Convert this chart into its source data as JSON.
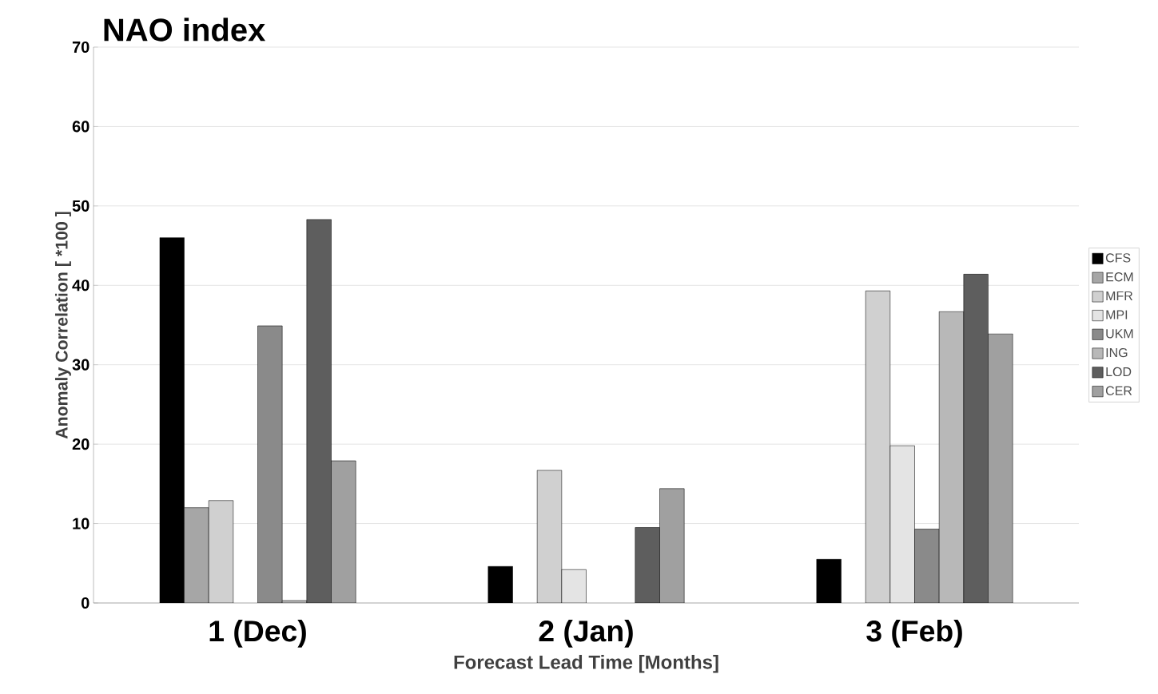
{
  "chart_data": {
    "type": "bar",
    "title": "NAO index",
    "xlabel": "Forecast Lead Time  [Months]",
    "ylabel": "Anomaly Correlation [ *100 ]",
    "categories": [
      "1 (Dec)",
      "2 (Jan)",
      "3 (Feb)"
    ],
    "series": [
      {
        "name": "CFS",
        "color": "#000000",
        "values": [
          46,
          4.6,
          5.5
        ]
      },
      {
        "name": "ECM",
        "color": "#a6a6a6",
        "values": [
          12,
          null,
          null
        ]
      },
      {
        "name": "MFR",
        "color": "#d0d0d0",
        "values": [
          12.9,
          16.7,
          39.3
        ]
      },
      {
        "name": "MPI",
        "color": "#e4e4e4",
        "values": [
          null,
          4.2,
          19.8
        ]
      },
      {
        "name": "UKM",
        "color": "#8a8a8a",
        "values": [
          34.9,
          null,
          9.3
        ]
      },
      {
        "name": "ING",
        "color": "#b8b8b8",
        "values": [
          0.3,
          null,
          36.7
        ]
      },
      {
        "name": "LOD",
        "color": "#5e5e5e",
        "values": [
          48.3,
          9.5,
          41.4
        ]
      },
      {
        "name": "CER",
        "color": "#a0a0a0",
        "values": [
          17.9,
          14.4,
          33.9
        ]
      }
    ],
    "ylim": [
      0,
      70
    ],
    "yticks": [
      0,
      10,
      20,
      30,
      40,
      50,
      60,
      70
    ],
    "grid": "y",
    "legend": "right"
  }
}
